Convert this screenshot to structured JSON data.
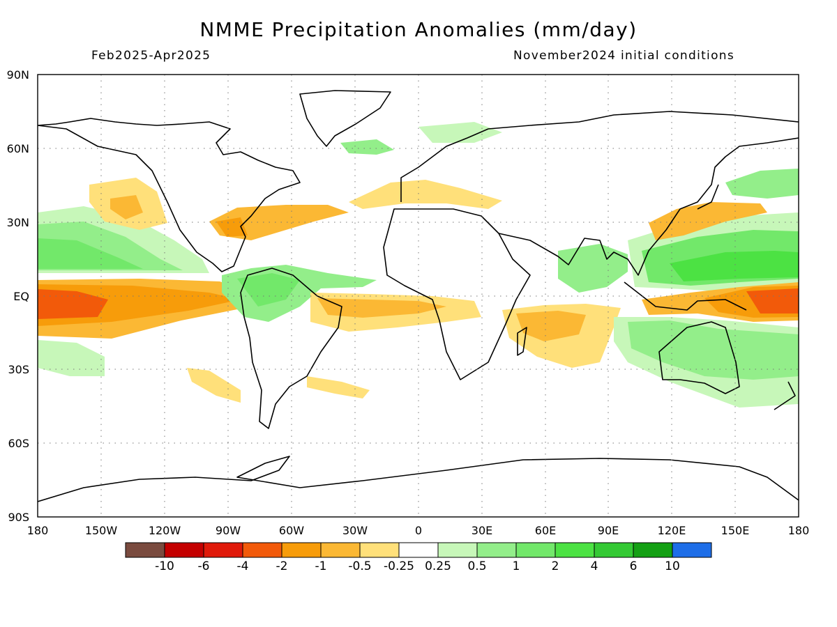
{
  "header": {
    "title": "NMME Precipitation Anomalies (mm/day)",
    "period": "Feb2025-Apr2025",
    "init": "November2024 initial conditions"
  },
  "map": {
    "lat_ticks": [
      "90N",
      "60N",
      "30N",
      "EQ",
      "30S",
      "60S",
      "90S"
    ],
    "lon_ticks": [
      "180",
      "150W",
      "120W",
      "90W",
      "60W",
      "30W",
      "0",
      "30E",
      "60E",
      "90E",
      "120E",
      "150E",
      "180"
    ]
  },
  "colorbar": {
    "colors": [
      "#7a4b3f",
      "#c40000",
      "#e01a0a",
      "#f25a0a",
      "#f79c0a",
      "#fbb834",
      "#ffe07a",
      "#ffffff",
      "#c7f7b9",
      "#93ee8a",
      "#72e86a",
      "#4ce243",
      "#34c934",
      "#14a014",
      "#1e6ee8"
    ],
    "labels": [
      "-10",
      "-6",
      "-4",
      "-2",
      "-1",
      "-0.5",
      "-0.25",
      "0.25",
      "0.5",
      "1",
      "2",
      "4",
      "6",
      "10"
    ]
  }
}
